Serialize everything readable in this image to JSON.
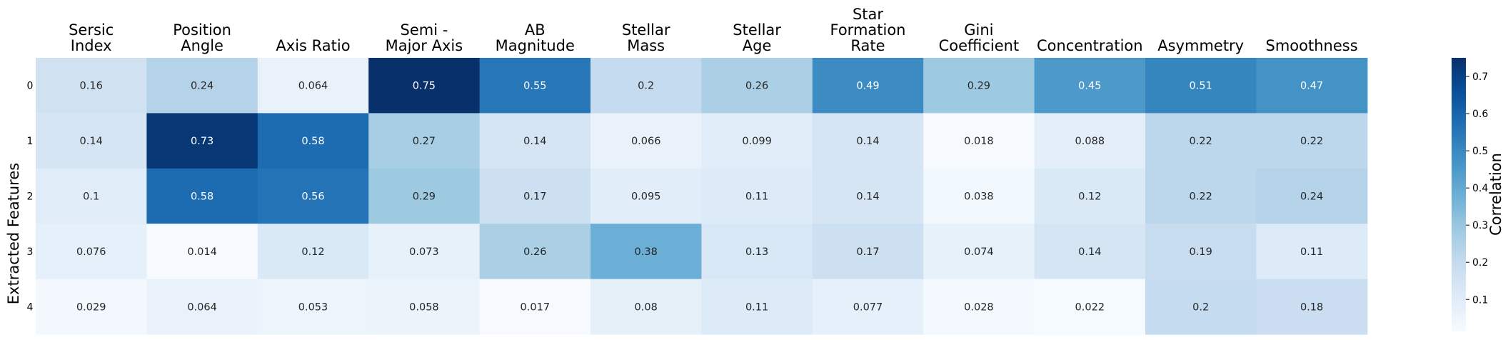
{
  "chart_data": {
    "type": "heatmap",
    "columns": [
      [
        "Sersic",
        "Index"
      ],
      [
        "Position",
        "Angle"
      ],
      [
        "Axis Ratio"
      ],
      [
        "Semi -",
        "Major Axis"
      ],
      [
        "AB",
        "Magnitude"
      ],
      [
        "Stellar",
        "Mass"
      ],
      [
        "Stellar",
        "Age"
      ],
      [
        "Star",
        "Formation",
        "Rate"
      ],
      [
        "Gini",
        "Coefficient"
      ],
      [
        "Concentration"
      ],
      [
        "Asymmetry"
      ],
      [
        "Smoothness"
      ]
    ],
    "rows": [
      "0",
      "1",
      "2",
      "3",
      "4"
    ],
    "values": [
      [
        0.16,
        0.24,
        0.064,
        0.75,
        0.55,
        0.2,
        0.26,
        0.49,
        0.29,
        0.45,
        0.51,
        0.47
      ],
      [
        0.14,
        0.73,
        0.58,
        0.27,
        0.14,
        0.066,
        0.099,
        0.14,
        0.018,
        0.088,
        0.22,
        0.22
      ],
      [
        0.1,
        0.58,
        0.56,
        0.29,
        0.17,
        0.095,
        0.11,
        0.14,
        0.038,
        0.12,
        0.22,
        0.24
      ],
      [
        0.076,
        0.014,
        0.12,
        0.073,
        0.26,
        0.38,
        0.13,
        0.17,
        0.074,
        0.14,
        0.19,
        0.11
      ],
      [
        0.029,
        0.064,
        0.053,
        0.058,
        0.017,
        0.08,
        0.11,
        0.077,
        0.028,
        0.022,
        0.2,
        0.18
      ]
    ],
    "labels": [
      [
        "0.16",
        "0.24",
        "0.064",
        "0.75",
        "0.55",
        "0.2",
        "0.26",
        "0.49",
        "0.29",
        "0.45",
        "0.51",
        "0.47"
      ],
      [
        "0.14",
        "0.73",
        "0.58",
        "0.27",
        "0.14",
        "0.066",
        "0.099",
        "0.14",
        "0.018",
        "0.088",
        "0.22",
        "0.22"
      ],
      [
        "0.1",
        "0.58",
        "0.56",
        "0.29",
        "0.17",
        "0.095",
        "0.11",
        "0.14",
        "0.038",
        "0.12",
        "0.22",
        "0.24"
      ],
      [
        "0.076",
        "0.014",
        "0.12",
        "0.073",
        "0.26",
        "0.38",
        "0.13",
        "0.17",
        "0.074",
        "0.14",
        "0.19",
        "0.11"
      ],
      [
        "0.029",
        "0.064",
        "0.053",
        "0.058",
        "0.017",
        "0.08",
        "0.11",
        "0.077",
        "0.028",
        "0.022",
        "0.2",
        "0.18"
      ]
    ],
    "ylabel": "Extracted Features",
    "colorbar": {
      "label": "Correlation",
      "range": [
        0.014,
        0.75
      ],
      "ticks": [
        0.1,
        0.2,
        0.3,
        0.4,
        0.5,
        0.6,
        0.7
      ],
      "tick_labels": [
        "0.1",
        "0.2",
        "0.3",
        "0.4",
        "0.5",
        "0.6",
        "0.7"
      ]
    },
    "colormap": "Blues",
    "x_axis_position": "top"
  }
}
